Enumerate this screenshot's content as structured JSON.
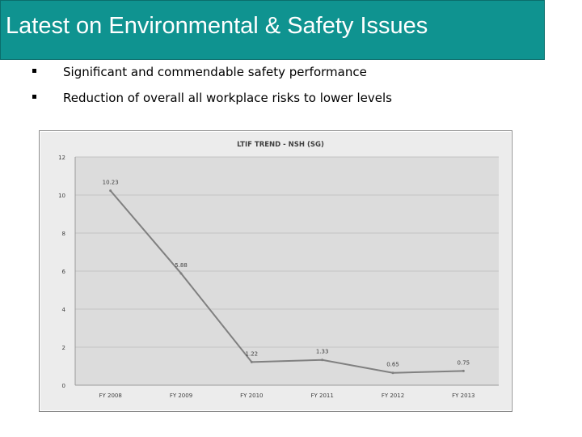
{
  "header": {
    "title": "Latest on Environmental & Safety Issues"
  },
  "bullets": [
    {
      "text": "Significant and commendable safety performance"
    },
    {
      "text": "Reduction of overall all workplace risks to lower levels"
    }
  ],
  "colors": {
    "title_bar": "#0f9390",
    "plot_bg": "#dcdcdc",
    "line": "#808080"
  },
  "chart_data": {
    "type": "line",
    "title": "LTIF TREND - NSH (SG)",
    "xlabel": "",
    "ylabel": "",
    "categories": [
      "FY 2008",
      "FY 2009",
      "FY 2010",
      "FY 2011",
      "FY 2012",
      "FY 2013"
    ],
    "series": [
      {
        "name": "LTIF",
        "values": [
          10.23,
          5.88,
          1.22,
          1.33,
          0.65,
          0.75
        ],
        "labels": [
          "10.23",
          "5.88",
          "1.22",
          "1.33",
          "0.65",
          "0.75"
        ]
      }
    ],
    "ylim": [
      0,
      12
    ],
    "yticks": [
      0,
      2,
      4,
      6,
      8,
      10,
      12
    ],
    "grid": true,
    "legend": "none"
  }
}
